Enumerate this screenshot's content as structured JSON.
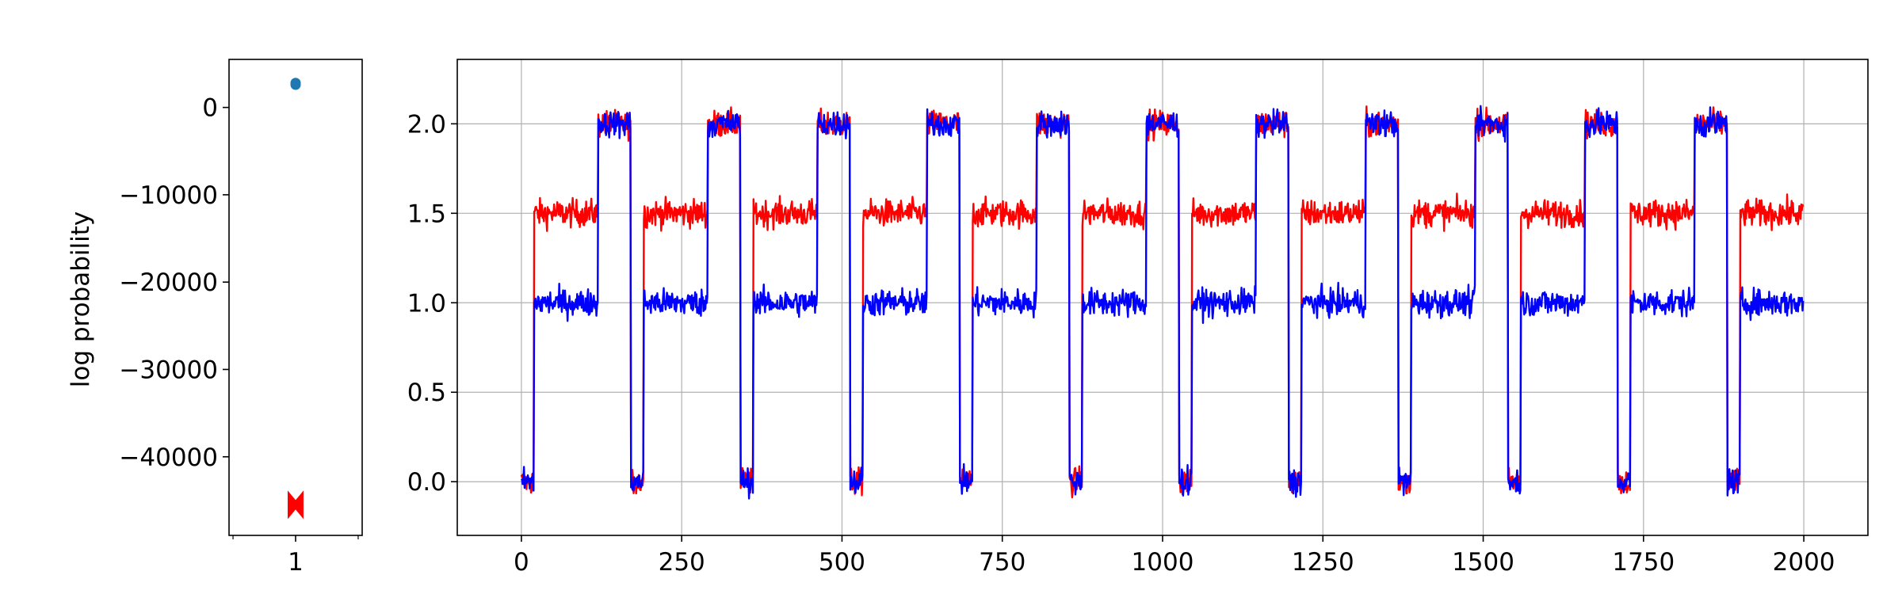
{
  "chart_data": [
    {
      "type": "scatter",
      "title": "",
      "xlabel": "",
      "ylabel": "log probability",
      "xlim": [
        0,
        2
      ],
      "ylim": [
        -49000,
        5500
      ],
      "xticks": [
        {
          "value": 1,
          "label": "1"
        }
      ],
      "yticks": [
        {
          "value": 0,
          "label": "0"
        },
        {
          "value": -10000,
          "label": "−10000"
        },
        {
          "value": -20000,
          "label": "−20000"
        },
        {
          "value": -30000,
          "label": "−30000"
        },
        {
          "value": -40000,
          "label": "−40000"
        }
      ],
      "grid": false,
      "series": [
        {
          "marker": "circle",
          "color": "#1f77b4",
          "points": [
            [
              1,
              2800
            ],
            [
              1,
              2600
            ]
          ]
        },
        {
          "marker": "bowtie",
          "color": "#ff0000",
          "points": [
            [
              1,
              -45500
            ]
          ]
        }
      ]
    },
    {
      "type": "line",
      "title": "",
      "xlabel": "",
      "ylabel": "",
      "xlim": [
        -100,
        2100
      ],
      "ylim": [
        -0.3,
        2.36
      ],
      "xticks": [
        0,
        250,
        500,
        750,
        1000,
        1250,
        1500,
        1750,
        2000
      ],
      "yticks": [
        {
          "value": 0.0,
          "label": "0.0"
        },
        {
          "value": 0.5,
          "label": "0.5"
        },
        {
          "value": 1.0,
          "label": "1.0"
        },
        {
          "value": 1.5,
          "label": "1.5"
        },
        {
          "value": 2.0,
          "label": "2.0"
        }
      ],
      "grid": true,
      "n_points": 2000,
      "period": 171,
      "segments": [
        {
          "state": "low",
          "length": 20
        },
        {
          "state": "mid",
          "length": 100
        },
        {
          "state": "high",
          "length": 51
        }
      ],
      "series": [
        {
          "color": "#ff0000",
          "levels": {
            "low": 0.0,
            "mid": 1.5,
            "high": 2.0
          },
          "noise": 0.06
        },
        {
          "color": "#0000ff",
          "levels": {
            "low": 0.0,
            "mid": 1.0,
            "high": 2.0
          },
          "noise": 0.06
        }
      ]
    }
  ]
}
